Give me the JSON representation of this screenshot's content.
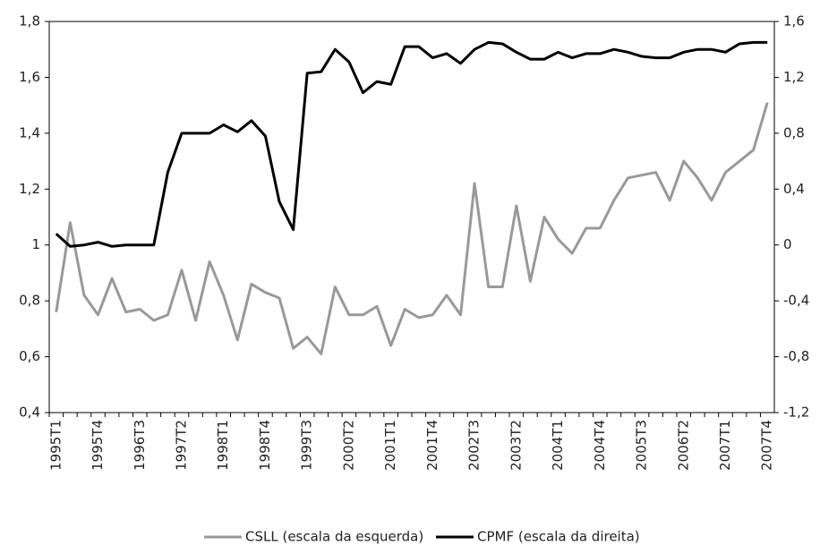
{
  "chart_data": {
    "type": "line",
    "categories": [
      "1995T1",
      null,
      null,
      "1995T4",
      null,
      null,
      "1996T3",
      null,
      null,
      "1997T2",
      null,
      null,
      "1998T1",
      null,
      null,
      "1998T4",
      null,
      null,
      "1999T3",
      null,
      null,
      "2000T2",
      null,
      null,
      "2001T1",
      null,
      null,
      "2001T4",
      null,
      null,
      "2002T3",
      null,
      null,
      "2003T2",
      null,
      null,
      "2004T1",
      null,
      null,
      "2004T4",
      null,
      null,
      "2005T3",
      null,
      null,
      "2006T2",
      null,
      null,
      "2007T1",
      null,
      null,
      "2007T4"
    ],
    "series": [
      {
        "name": "CSLL (escala da esquerda)",
        "color": "#999999",
        "values": [
          0.76,
          1.08,
          0.82,
          0.75,
          0.88,
          0.76,
          0.77,
          0.73,
          0.75,
          0.91,
          0.73,
          0.94,
          0.82,
          0.66,
          0.86,
          0.83,
          0.81,
          0.63,
          0.67,
          0.61,
          0.85,
          0.75,
          0.75,
          0.78,
          0.64,
          0.77,
          0.74,
          0.75,
          0.82,
          0.75,
          1.22,
          0.85,
          0.85,
          1.14,
          0.87,
          1.1,
          1.02,
          0.97,
          1.06,
          1.06,
          1.16,
          1.24,
          1.25,
          1.26,
          1.16,
          1.3,
          1.24,
          1.16,
          1.26,
          1.3,
          1.34,
          1.51
        ]
      },
      {
        "name": "CPMF (escala da direita)",
        "color": "#000000",
        "axis": "y2",
        "values": [
          0.08,
          -0.01,
          0.0,
          0.02,
          -0.01,
          0.0,
          0.0,
          0.0,
          0.52,
          0.8,
          0.8,
          0.8,
          0.86,
          0.81,
          0.89,
          0.78,
          0.31,
          0.11,
          1.23,
          1.24,
          1.4,
          1.31,
          1.09,
          1.17,
          1.15,
          1.42,
          1.42,
          1.34,
          1.37,
          1.3,
          1.4,
          1.45,
          1.44,
          1.38,
          1.33,
          1.33,
          1.38,
          1.34,
          1.37,
          1.37,
          1.4,
          1.38,
          1.35,
          1.34,
          1.34,
          1.38,
          1.4,
          1.4,
          1.38,
          1.44,
          1.45,
          1.45
        ]
      }
    ],
    "ylim": [
      0.4,
      1.8
    ],
    "yticks": [
      {
        "value": 0.4,
        "label": "0,4"
      },
      {
        "value": 0.6,
        "label": "0,6"
      },
      {
        "value": 0.8,
        "label": "0,8"
      },
      1,
      {
        "value": 1.2,
        "label": "1,2"
      },
      {
        "value": 1.4,
        "label": "1,4"
      },
      {
        "value": 1.6,
        "label": "1,6"
      },
      {
        "value": 1.8,
        "label": "1,8"
      }
    ],
    "y2lim": [
      -1.2,
      1.6
    ],
    "y2ticks": [
      {
        "value": -1.2,
        "label": "-1,2"
      },
      {
        "value": -0.8,
        "label": "-0,8"
      },
      {
        "value": -0.4,
        "label": "-0,4"
      },
      0,
      {
        "value": 0.4,
        "label": "0,4"
      },
      {
        "value": 0.8,
        "label": "0,8"
      },
      {
        "value": 1.2,
        "label": "1,2"
      },
      {
        "value": 1.6,
        "label": "1,6"
      }
    ],
    "grid": false,
    "legend": "bottom"
  }
}
